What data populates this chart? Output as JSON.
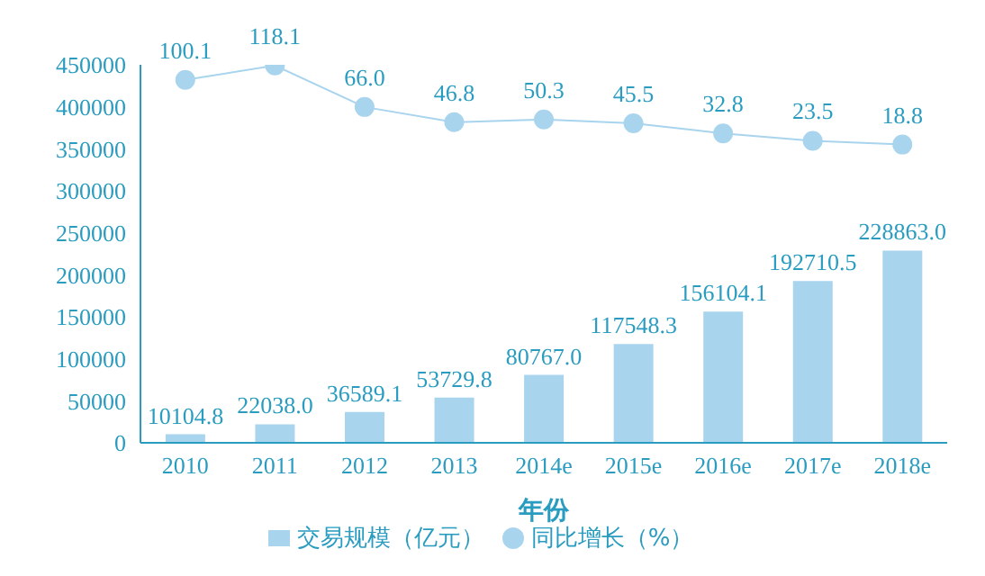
{
  "chart_data": {
    "type": "bar",
    "xlabel": "年份",
    "categories": [
      "2010",
      "2011",
      "2012",
      "2013",
      "2014e",
      "2015e",
      "2016e",
      "2017e",
      "2018e"
    ],
    "series": [
      {
        "name": "交易规模（亿元）",
        "color": "#a9d4ee",
        "values": [
          10104.8,
          22038.0,
          36589.1,
          53729.8,
          80767.0,
          117548.3,
          156104.1,
          192710.5,
          228863.0
        ],
        "value_labels": [
          "10104.8",
          "22038.0",
          "36589.1",
          "53729.8",
          "80767.0",
          "117548.3",
          "156104.1",
          "192710.5",
          "228863.0"
        ]
      },
      {
        "name": "同比增长（%）",
        "type": "line",
        "axis": "y2",
        "color": "#a9d4ee",
        "values": [
          100.1,
          118.1,
          66.0,
          46.8,
          50.3,
          45.5,
          32.8,
          23.5,
          18.8
        ],
        "value_labels": [
          "100.1",
          "118.1",
          "66.0",
          "46.8",
          "50.3",
          "45.5",
          "32.8",
          "23.5",
          "18.8"
        ]
      }
    ],
    "ylim": [
      0,
      450000
    ],
    "yticks": [
      0,
      50000,
      100000,
      150000,
      200000,
      250000,
      300000,
      350000,
      400000,
      450000
    ],
    "y2lim": [
      -356,
      119
    ],
    "legend": "bottom",
    "marker": "circle"
  }
}
